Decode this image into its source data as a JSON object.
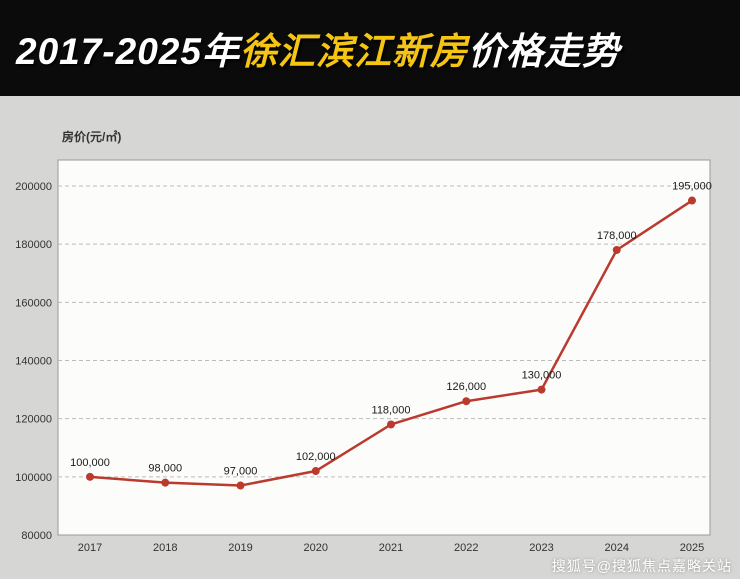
{
  "header": {
    "title_part1": "2017-2025年",
    "title_part2": "徐汇滨江新房",
    "title_part3": "价格走势",
    "accent_color": "#f6c514",
    "bg_color": "#0b0b0b"
  },
  "chart": {
    "y_axis_title": "房价(元/㎡)"
  },
  "chart_data": {
    "type": "line",
    "title": "2017-2025年徐汇滨江新房价格走势",
    "ylabel": "房价(元/㎡)",
    "x": [
      "2017",
      "2018",
      "2019",
      "2020",
      "2021",
      "2022",
      "2023",
      "2024",
      "2025"
    ],
    "values": [
      100000,
      98000,
      97000,
      102000,
      118000,
      126000,
      130000,
      178000,
      195000
    ],
    "point_labels": [
      "100,000",
      "98,000",
      "97,000",
      "102,000",
      "118,000",
      "126,000",
      "130,000",
      "178,000",
      "195,000"
    ],
    "ylim": [
      80000,
      200000
    ],
    "ytick_step": 20000,
    "yticks": [
      80000,
      100000,
      120000,
      140000,
      160000,
      180000,
      200000
    ],
    "grid": true,
    "legend": "none",
    "line_color": "#bb3a2e",
    "point_color": "#bb3a2e",
    "label_color": "#1a1a1a",
    "grid_color": "#bbbbbb",
    "plot_bg": "#fcfcfb",
    "plot_border": "#999999"
  },
  "watermark": {
    "text": "搜狐号@搜狐焦点嘉略关站"
  }
}
